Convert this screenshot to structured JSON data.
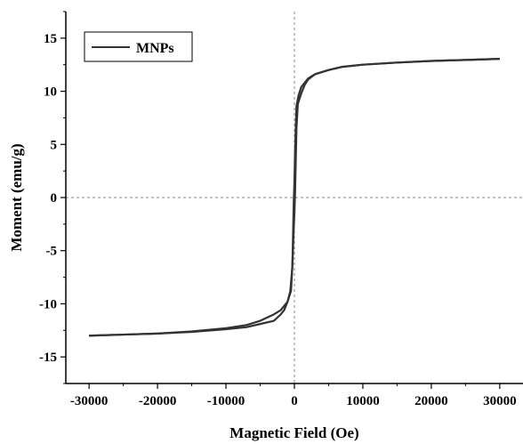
{
  "chart_data": {
    "type": "line",
    "title": "",
    "xlabel": "Magnetic Field (Oe)",
    "ylabel": "Moment (emu/g)",
    "xlim": [
      -33400,
      33400
    ],
    "ylim": [
      -17.5,
      17.5
    ],
    "x_ticks": [
      -30000,
      -20000,
      -10000,
      0,
      10000,
      20000,
      30000
    ],
    "x_tick_labels": [
      "-30000",
      "-20000",
      "-10000",
      "0",
      "10000",
      "20000",
      "30000"
    ],
    "y_ticks": [
      -15,
      -10,
      -5,
      0,
      5,
      10,
      15
    ],
    "y_tick_labels": [
      "-15",
      "-10",
      "-5",
      "0",
      "5",
      "10",
      "15"
    ],
    "grid": false,
    "zero_lines": true,
    "legend_position": "top-left",
    "line_color": "#333333",
    "series": [
      {
        "name": "MNPs",
        "branches": [
          {
            "x": [
              -30000,
              -25000,
              -20000,
              -15000,
              -10000,
              -7000,
              -5000,
              -3000,
              -2000,
              -1000,
              -600,
              -300,
              -100,
              0,
              100,
              200,
              300,
              500,
              1000,
              1500,
              2000,
              3000,
              5000,
              7000,
              10000,
              15000,
              20000,
              25000,
              30000
            ],
            "y": [
              -13.0,
              -12.9,
              -12.8,
              -12.6,
              -12.3,
              -12.0,
              -11.6,
              -11.0,
              -10.6,
              -9.8,
              -8.8,
              -6.5,
              -3.0,
              -1.5,
              0.5,
              3.5,
              6.5,
              8.8,
              9.8,
              10.6,
              11.1,
              11.6,
              12.0,
              12.3,
              12.5,
              12.7,
              12.85,
              12.95,
              13.05
            ]
          },
          {
            "x": [
              30000,
              25000,
              20000,
              15000,
              10000,
              7000,
              5000,
              3000,
              2000,
              1000,
              600,
              300,
              100,
              0,
              -100,
              -200,
              -300,
              -500,
              -1000,
              -1500,
              -2000,
              -3000,
              -5000,
              -7000,
              -10000,
              -15000,
              -20000,
              -25000,
              -30000
            ],
            "y": [
              13.05,
              12.95,
              12.85,
              12.7,
              12.5,
              12.3,
              12.0,
              11.6,
              11.2,
              10.4,
              9.6,
              8.6,
              4.5,
              1.5,
              -0.5,
              -3.5,
              -6.5,
              -8.8,
              -9.8,
              -10.6,
              -11.0,
              -11.6,
              -11.9,
              -12.2,
              -12.4,
              -12.65,
              -12.8,
              -12.9,
              -13.0
            ]
          }
        ]
      }
    ]
  }
}
